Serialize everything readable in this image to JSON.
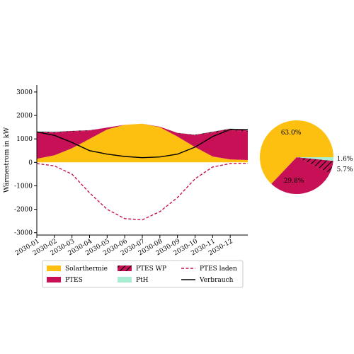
{
  "chart_data": [
    {
      "type": "area",
      "ylabel": "Wärmestrom in kW",
      "xlabel": "",
      "ylim": [
        -3100,
        3300
      ],
      "yticks": [
        -3000,
        -2000,
        -1000,
        0,
        1000,
        2000,
        3000
      ],
      "xticks": [
        "2030-01",
        "2030-02",
        "2030-03",
        "2030-04",
        "2030-05",
        "2030-06",
        "2030-07",
        "2030-08",
        "2030-09",
        "2030-10",
        "2030-11",
        "2030-12"
      ],
      "x": [
        "2030-01",
        "2030-02",
        "2030-03",
        "2030-04",
        "2030-05",
        "2030-06",
        "2030-07",
        "2030-08",
        "2030-09",
        "2030-10",
        "2030-11",
        "2030-12",
        "2030-12-31"
      ],
      "series": [
        {
          "name": "Solarthermie",
          "kind": "area",
          "values": [
            150,
            300,
            600,
            1000,
            1400,
            1600,
            1650,
            1500,
            1100,
            650,
            250,
            120,
            100
          ]
        },
        {
          "name": "PTES",
          "kind": "area",
          "values": [
            1100,
            950,
            700,
            350,
            80,
            0,
            0,
            20,
            150,
            500,
            1000,
            1250,
            1200
          ]
        },
        {
          "name": "PTES WP",
          "kind": "area",
          "values": [
            60,
            50,
            40,
            20,
            5,
            0,
            0,
            0,
            10,
            30,
            55,
            65,
            60
          ]
        },
        {
          "name": "PtH",
          "kind": "area",
          "values": [
            20,
            15,
            10,
            5,
            0,
            0,
            0,
            0,
            5,
            10,
            15,
            20,
            20
          ]
        },
        {
          "name": "PTES laden",
          "kind": "line-dashed",
          "values": [
            -50,
            -150,
            -500,
            -1300,
            -2000,
            -2400,
            -2450,
            -2100,
            -1500,
            -700,
            -200,
            -50,
            -40
          ]
        },
        {
          "name": "Verbrauch",
          "kind": "line",
          "values": [
            1300,
            1150,
            850,
            500,
            350,
            250,
            200,
            230,
            350,
            650,
            1100,
            1400,
            1400
          ]
        }
      ],
      "legend": [
        "Solarthermie",
        "PTES WP",
        "PTES laden",
        "PTES",
        "PtH",
        "Verbrauch"
      ],
      "legend_placement": "bottom",
      "grid": false
    },
    {
      "type": "pie",
      "labels": [
        "Solarthermie",
        "PTES",
        "PTES WP",
        "PtH"
      ],
      "values": [
        63.0,
        29.8,
        5.7,
        1.6
      ],
      "value_labels": [
        "63.0%",
        "29.8%",
        "5.7%",
        "1.6%"
      ]
    }
  ],
  "colors": {
    "Solarthermie": "#fdc010",
    "PTES": "#c81057",
    "PTES WP": "#c81057",
    "PtH": "#a8efd2",
    "PTES laden": "#c81057",
    "Verbrauch": "#000000"
  }
}
